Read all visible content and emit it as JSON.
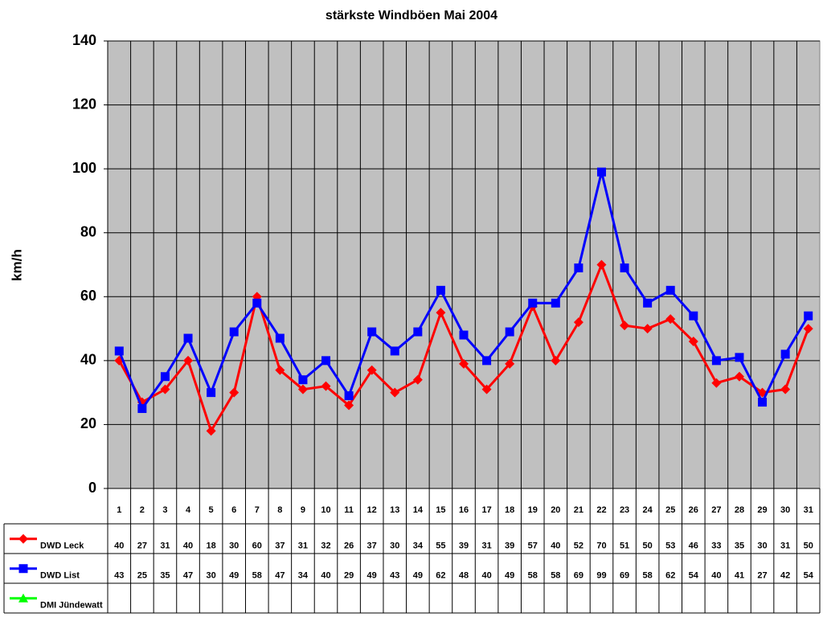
{
  "chart_data": {
    "type": "line",
    "title": "stärkste Windböen Mai 2004",
    "y_label": "km/h",
    "categories": [
      "1",
      "2",
      "3",
      "4",
      "5",
      "6",
      "7",
      "8",
      "9",
      "10",
      "11",
      "12",
      "13",
      "14",
      "15",
      "16",
      "17",
      "18",
      "19",
      "20",
      "21",
      "22",
      "23",
      "24",
      "25",
      "26",
      "27",
      "28",
      "29",
      "30",
      "31"
    ],
    "series": [
      {
        "name": "DWD Leck",
        "color": "#ff0000",
        "marker": "diamond",
        "values": [
          40,
          27,
          31,
          40,
          18,
          30,
          60,
          37,
          31,
          32,
          26,
          37,
          30,
          34,
          55,
          39,
          31,
          39,
          57,
          40,
          52,
          70,
          51,
          50,
          53,
          46,
          33,
          35,
          30,
          31,
          50
        ]
      },
      {
        "name": "DWD List",
        "color": "#0000ff",
        "marker": "square",
        "values": [
          43,
          25,
          35,
          47,
          30,
          49,
          58,
          47,
          34,
          40,
          29,
          49,
          43,
          49,
          62,
          48,
          40,
          49,
          58,
          58,
          69,
          99,
          69,
          58,
          62,
          54,
          40,
          41,
          27,
          42,
          54
        ]
      },
      {
        "name": "DMI Jündewatt",
        "color": "#00ff00",
        "marker": "triangle",
        "values": [
          null,
          null,
          null,
          null,
          null,
          null,
          null,
          null,
          null,
          null,
          null,
          null,
          null,
          null,
          null,
          null,
          null,
          null,
          null,
          null,
          null,
          null,
          null,
          null,
          null,
          null,
          null,
          null,
          null,
          null,
          null
        ]
      }
    ],
    "ylim": [
      0,
      140
    ],
    "yticks": [
      0,
      20,
      40,
      60,
      80,
      100,
      120,
      140
    ],
    "grid": true,
    "data_table": true
  }
}
